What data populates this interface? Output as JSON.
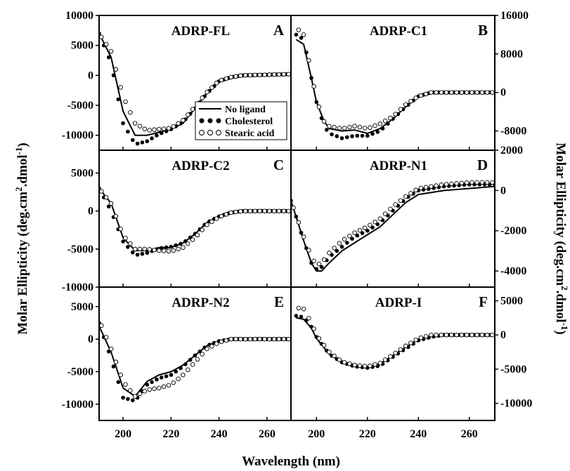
{
  "figure": {
    "xlabel": "Wavelength (nm)",
    "ylabel_left": "Molar Ellipticity (deg.cm",
    "ylabel_sup": "2",
    "ylabel_mid": ".dmol",
    "ylabel_sup2": "-1",
    "ylabel_end": ")",
    "legend": [
      "No ligand",
      "Cholesterol",
      "Stearic acid"
    ]
  },
  "chart_data": [
    {
      "type": "line",
      "panel": "A",
      "title": "ADRP-FL",
      "axis_side": "left",
      "xlim": [
        190,
        270
      ],
      "ylim": [
        -12500,
        10000
      ],
      "yticks": [
        10000,
        5000,
        0,
        -5000,
        -10000
      ],
      "xticks": [
        200,
        220,
        240,
        260
      ],
      "x": [
        190,
        195,
        200,
        205,
        210,
        215,
        220,
        225,
        230,
        235,
        240,
        245,
        250,
        260,
        270
      ],
      "series": [
        {
          "name": "No ligand",
          "style": "line",
          "values": [
            7000,
            3000,
            -6000,
            -10000,
            -10000,
            -9500,
            -9000,
            -8000,
            -5500,
            -3000,
            -1000,
            -300,
            0,
            100,
            200
          ]
        },
        {
          "name": "Cholesterol",
          "style": "filled",
          "values": [
            7000,
            2000,
            -8000,
            -11500,
            -11000,
            -9800,
            -9000,
            -7800,
            -5500,
            -3000,
            -1000,
            -300,
            0,
            100,
            200
          ]
        },
        {
          "name": "Stearic acid",
          "style": "open",
          "values": [
            7000,
            4000,
            -3500,
            -8000,
            -9200,
            -9000,
            -8800,
            -7500,
            -5200,
            -2800,
            -900,
            -300,
            0,
            100,
            200
          ]
        }
      ]
    },
    {
      "type": "line",
      "panel": "B",
      "title": "ADRP-C1",
      "axis_side": "right",
      "xlim": [
        190,
        270
      ],
      "ylim": [
        -12000,
        16000
      ],
      "yticks": [
        16000,
        8000,
        0,
        -8000
      ],
      "xticks": [
        200,
        220,
        240,
        260
      ],
      "x": [
        192,
        195,
        198,
        200,
        203,
        205,
        210,
        215,
        220,
        225,
        230,
        235,
        240,
        245,
        250,
        260,
        270
      ],
      "series": [
        {
          "name": "No ligand",
          "style": "line",
          "values": [
            11000,
            10000,
            3000,
            -2000,
            -6000,
            -7500,
            -8000,
            -7800,
            -8500,
            -7500,
            -5500,
            -3000,
            -800,
            0,
            0,
            0,
            0
          ]
        },
        {
          "name": "Cholesterol",
          "style": "filled",
          "values": [
            12000,
            11000,
            3000,
            -2000,
            -7000,
            -8500,
            -9500,
            -9000,
            -9000,
            -8000,
            -5500,
            -3000,
            -800,
            0,
            0,
            0,
            0
          ]
        },
        {
          "name": "Stearic acid",
          "style": "open",
          "values": [
            13500,
            12000,
            4000,
            -1500,
            -6000,
            -7000,
            -7500,
            -7000,
            -7500,
            -6500,
            -5000,
            -2500,
            -800,
            0,
            0,
            0,
            0
          ]
        }
      ]
    },
    {
      "type": "line",
      "panel": "C",
      "title": "ADRP-C2",
      "axis_side": "left",
      "xlim": [
        190,
        270
      ],
      "ylim": [
        -10000,
        8000
      ],
      "yticks": [
        5000,
        0,
        -5000,
        -10000
      ],
      "xticks": [
        200,
        220,
        240,
        260
      ],
      "x": [
        190,
        195,
        200,
        205,
        210,
        215,
        220,
        225,
        230,
        235,
        240,
        245,
        250,
        260,
        270
      ],
      "series": [
        {
          "name": "No ligand",
          "style": "line",
          "values": [
            3000,
            1000,
            -3500,
            -5200,
            -5200,
            -4800,
            -4800,
            -4200,
            -3000,
            -1500,
            -700,
            -200,
            0,
            0,
            0
          ]
        },
        {
          "name": "Cholesterol",
          "style": "filled",
          "values": [
            3000,
            0,
            -4000,
            -5800,
            -5500,
            -4900,
            -4700,
            -4200,
            -3000,
            -1500,
            -700,
            -200,
            0,
            0,
            0
          ]
        },
        {
          "name": "Stearic acid",
          "style": "open",
          "values": [
            3000,
            1000,
            -3200,
            -5000,
            -5000,
            -5200,
            -5300,
            -4800,
            -3500,
            -1800,
            -800,
            -200,
            0,
            0,
            0
          ]
        }
      ]
    },
    {
      "type": "line",
      "panel": "D",
      "title": "ADRP-N1",
      "axis_side": "right",
      "xlim": [
        190,
        270
      ],
      "ylim": [
        -4800,
        2000
      ],
      "yticks": [
        2000,
        0,
        -2000,
        -4000
      ],
      "xticks": [
        200,
        220,
        240,
        260
      ],
      "x": [
        190,
        195,
        198,
        200,
        202,
        205,
        210,
        215,
        220,
        225,
        230,
        235,
        240,
        250,
        260,
        270
      ],
      "series": [
        {
          "name": "No ligand",
          "style": "line",
          "values": [
            -500,
            -2500,
            -3600,
            -4000,
            -4000,
            -3600,
            -3000,
            -2600,
            -2200,
            -1800,
            -1200,
            -600,
            -200,
            0,
            100,
            200
          ]
        },
        {
          "name": "Cholesterol",
          "style": "filled",
          "values": [
            -500,
            -2500,
            -3600,
            -3900,
            -3800,
            -3300,
            -2800,
            -2300,
            -2000,
            -1600,
            -1000,
            -400,
            0,
            200,
            300,
            300
          ]
        },
        {
          "name": "Stearic acid",
          "style": "open",
          "values": [
            -500,
            -2300,
            -3300,
            -3700,
            -3600,
            -3100,
            -2500,
            -2100,
            -1800,
            -1400,
            -800,
            -300,
            100,
            300,
            400,
            400
          ]
        }
      ]
    },
    {
      "type": "line",
      "panel": "E",
      "title": "ADRP-N2",
      "axis_side": "left",
      "xlim": [
        190,
        270
      ],
      "ylim": [
        -12500,
        8000
      ],
      "yticks": [
        5000,
        0,
        -5000,
        -10000
      ],
      "xticks": [
        200,
        220,
        240,
        260
      ],
      "x": [
        190,
        195,
        200,
        205,
        210,
        215,
        220,
        225,
        230,
        235,
        240,
        245,
        250,
        260,
        270
      ],
      "series": [
        {
          "name": "No ligand",
          "style": "line",
          "values": [
            2000,
            -2000,
            -7500,
            -8800,
            -6500,
            -5500,
            -5000,
            -4000,
            -2500,
            -1000,
            -300,
            0,
            0,
            0,
            0
          ]
        },
        {
          "name": "Cholesterol",
          "style": "filled",
          "values": [
            2500,
            -3000,
            -9000,
            -9500,
            -7000,
            -6000,
            -5500,
            -4200,
            -2500,
            -1000,
            -300,
            0,
            0,
            0,
            0
          ]
        },
        {
          "name": "Stearic acid",
          "style": "open",
          "values": [
            3000,
            -1500,
            -6500,
            -8800,
            -7800,
            -7500,
            -7000,
            -5500,
            -3500,
            -1500,
            -500,
            0,
            0,
            0,
            0
          ]
        }
      ]
    },
    {
      "type": "line",
      "panel": "F",
      "title": "ADRP-I",
      "axis_side": "right",
      "xlim": [
        190,
        270
      ],
      "ylim": [
        -12500,
        7000
      ],
      "yticks": [
        5000,
        0,
        -5000,
        -10000
      ],
      "xticks": [
        200,
        220,
        240,
        260
      ],
      "x": [
        192,
        195,
        198,
        200,
        205,
        210,
        215,
        220,
        225,
        230,
        235,
        240,
        245,
        250,
        260,
        270
      ],
      "series": [
        {
          "name": "No ligand",
          "style": "line",
          "values": [
            2500,
            2300,
            1000,
            -500,
            -2800,
            -4000,
            -4500,
            -4700,
            -4200,
            -3000,
            -1800,
            -600,
            -200,
            0,
            0,
            0
          ]
        },
        {
          "name": "Cholesterol",
          "style": "filled",
          "values": [
            2800,
            2600,
            1200,
            -300,
            -2800,
            -4000,
            -4600,
            -4800,
            -4500,
            -3200,
            -2000,
            -800,
            -300,
            0,
            0,
            0
          ]
        },
        {
          "name": "Stearic acid",
          "style": "open",
          "values": [
            4000,
            3800,
            1800,
            0,
            -2500,
            -3900,
            -4400,
            -4600,
            -4100,
            -2900,
            -1600,
            -500,
            0,
            0,
            0,
            0
          ]
        }
      ]
    }
  ]
}
